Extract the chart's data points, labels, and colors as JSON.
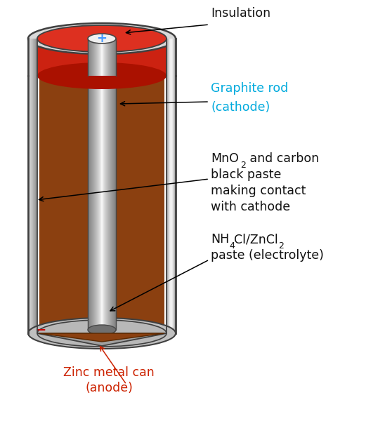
{
  "figsize": [
    5.48,
    6.0
  ],
  "dpi": 100,
  "bg": "#ffffff",
  "zinc_silver": "#c0c0c0",
  "zinc_light": "#d8d8d8",
  "zinc_mid": "#a8a8a8",
  "zinc_dark": "#707070",
  "zinc_edge": "#404040",
  "insulation_red": "#cc2211",
  "insulation_bright": "#dd3020",
  "insulation_dark": "#aa1100",
  "paste_brown": "#8B4010",
  "paste_dark": "#5a2800",
  "graphite_white": "#f0f0f0",
  "graphite_light": "#d8d8d8",
  "graphite_mid": "#b0b0b0",
  "graphite_dark": "#707070",
  "graphite_edge": "#484848",
  "cyan": "#00aadd",
  "red_label": "#cc2200",
  "black": "#111111",
  "label_insulation": "Insulation",
  "label_graphite_1": "Graphite rod",
  "label_graphite_2": "(cathode)",
  "label_mno2_pre": "MnO",
  "label_mno2_sub": "2",
  "label_mno2_post": " and carbon",
  "label_mno2_rest": "black paste\nmaking contact\nwith cathode",
  "label_nh4cl_pre": "NH",
  "label_nh4cl_sub1": "4",
  "label_nh4cl_mid": "Cl/ZnCl",
  "label_nh4cl_sub2": "2",
  "label_nh4cl_rest": "paste (electrolyte)",
  "label_zinc_1": "Zinc metal can",
  "label_zinc_2": "(anode)"
}
